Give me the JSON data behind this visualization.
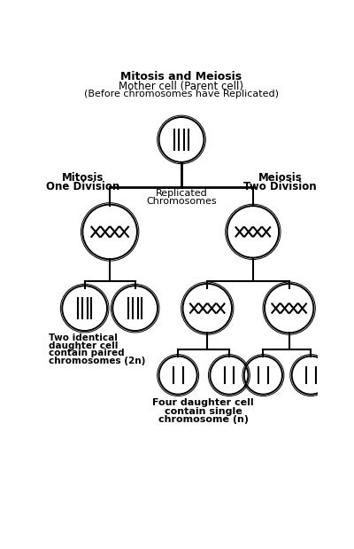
{
  "title_lines": [
    "Mitosis and Meiosis",
    "Mother cell (Parent cell)",
    "(Before chromosomes have Replicated)"
  ],
  "label_mitosis": [
    "Mitosis",
    "One Division"
  ],
  "label_meiosis": [
    "Meiosis",
    "Two Division"
  ],
  "label_replicated": [
    "Replicated",
    "Chromosomes"
  ],
  "label_two_daughter": [
    "Two identical",
    "daughter cell",
    "contain paired",
    "chromosomes (2n)"
  ],
  "label_four_daughter": [
    "Four daughter cell",
    "contain single",
    "chromosome (n)"
  ],
  "bg_color": "#ffffff",
  "line_color": "#000000",
  "cell_lw": 1.4
}
